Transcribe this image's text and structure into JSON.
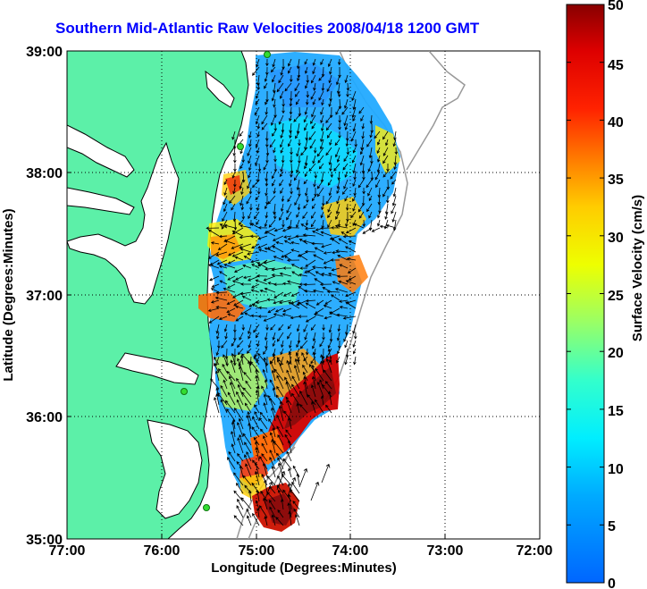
{
  "title": "Southern Mid-Atlantic Raw Velocities 2008/04/18 1200 GMT",
  "x_axis": {
    "label": "Longitude (Degrees:Minutes)",
    "ticks": [
      "77:00",
      "76:00",
      "75:00",
      "74:00",
      "73:00",
      "72:00"
    ]
  },
  "y_axis": {
    "label": "Latitude (Degrees:Minutes)",
    "ticks": [
      "39:00",
      "38:00",
      "37:00",
      "36:00",
      "35:00"
    ]
  },
  "colorbar": {
    "label": "Surface Velocity (cm/s)",
    "ticks": [
      "50",
      "45",
      "40",
      "35",
      "30",
      "25",
      "20",
      "15",
      "10",
      "5",
      "0"
    ],
    "min": 0,
    "max": 50
  },
  "colors": {
    "land": "#5cf0a8",
    "title": "#0000ff",
    "stations": "#33dd33"
  },
  "icons": [
    "coastline",
    "bathymetry-contours",
    "current-vector-arrows",
    "hf-radar-stations"
  ]
}
